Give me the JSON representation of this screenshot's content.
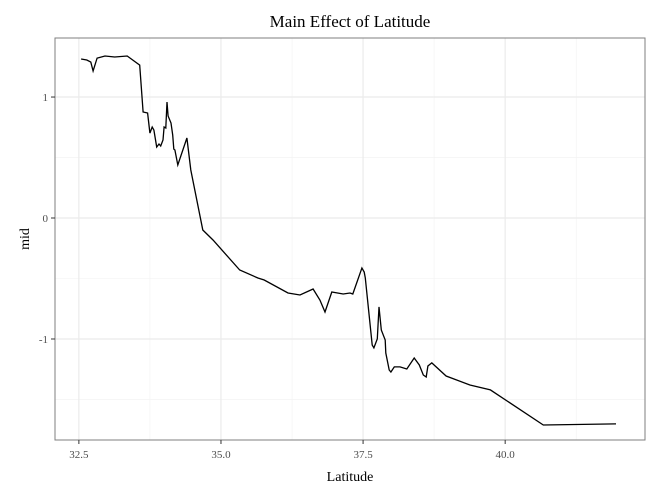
{
  "chart_data": {
    "type": "line",
    "title": "Main Effect of Latitude",
    "xlabel": "Latitude",
    "ylabel": "mid",
    "xlim": [
      32.08,
      42.46
    ],
    "ylim": [
      -1.835,
      1.488
    ],
    "xticks": [
      32.5,
      35.0,
      37.5,
      40.0
    ],
    "xtick_labels": [
      "32.5",
      "35.0",
      "37.5",
      "40.0"
    ],
    "yticks": [
      1,
      0,
      -1
    ],
    "ytick_labels": [
      "1",
      "0",
      "-1"
    ],
    "grid": true,
    "line_color": "#000000",
    "series": [
      {
        "name": "mid",
        "x": [
          32.54,
          32.64,
          32.71,
          32.75,
          32.82,
          32.96,
          33.13,
          33.35,
          33.57,
          33.63,
          33.71,
          33.75,
          33.79,
          33.82,
          33.87,
          33.91,
          33.94,
          33.98,
          34.0,
          34.03,
          34.05,
          34.07,
          34.12,
          34.15,
          34.17,
          34.19,
          34.24,
          34.4,
          34.47,
          34.68,
          34.86,
          35.33,
          35.65,
          35.76,
          36.18,
          36.39,
          36.62,
          36.74,
          36.83,
          36.95,
          37.15,
          37.27,
          37.32,
          37.48,
          37.52,
          37.54,
          37.66,
          37.69,
          37.75,
          37.78,
          37.82,
          37.89,
          37.9,
          37.96,
          37.99,
          38.05,
          38.15,
          38.27,
          38.4,
          38.49,
          38.56,
          38.61,
          38.64,
          38.71,
          38.96,
          39.38,
          39.74,
          40.67,
          41.95
        ],
        "y": [
          1.314,
          1.306,
          1.289,
          1.215,
          1.322,
          1.339,
          1.331,
          1.339,
          1.264,
          0.876,
          0.868,
          0.702,
          0.752,
          0.727,
          0.587,
          0.612,
          0.595,
          0.645,
          0.752,
          0.744,
          0.959,
          0.843,
          0.785,
          0.686,
          0.57,
          0.562,
          0.438,
          0.661,
          0.397,
          -0.099,
          -0.182,
          -0.43,
          -0.496,
          -0.512,
          -0.62,
          -0.636,
          -0.587,
          -0.678,
          -0.777,
          -0.612,
          -0.628,
          -0.62,
          -0.628,
          -0.413,
          -0.446,
          -0.496,
          -1.05,
          -1.074,
          -0.999,
          -0.735,
          -0.926,
          -1.008,
          -1.116,
          -1.256,
          -1.273,
          -1.231,
          -1.231,
          -1.248,
          -1.157,
          -1.215,
          -1.298,
          -1.314,
          -1.223,
          -1.198,
          -1.306,
          -1.38,
          -1.421,
          -1.711,
          -1.702
        ]
      }
    ]
  }
}
